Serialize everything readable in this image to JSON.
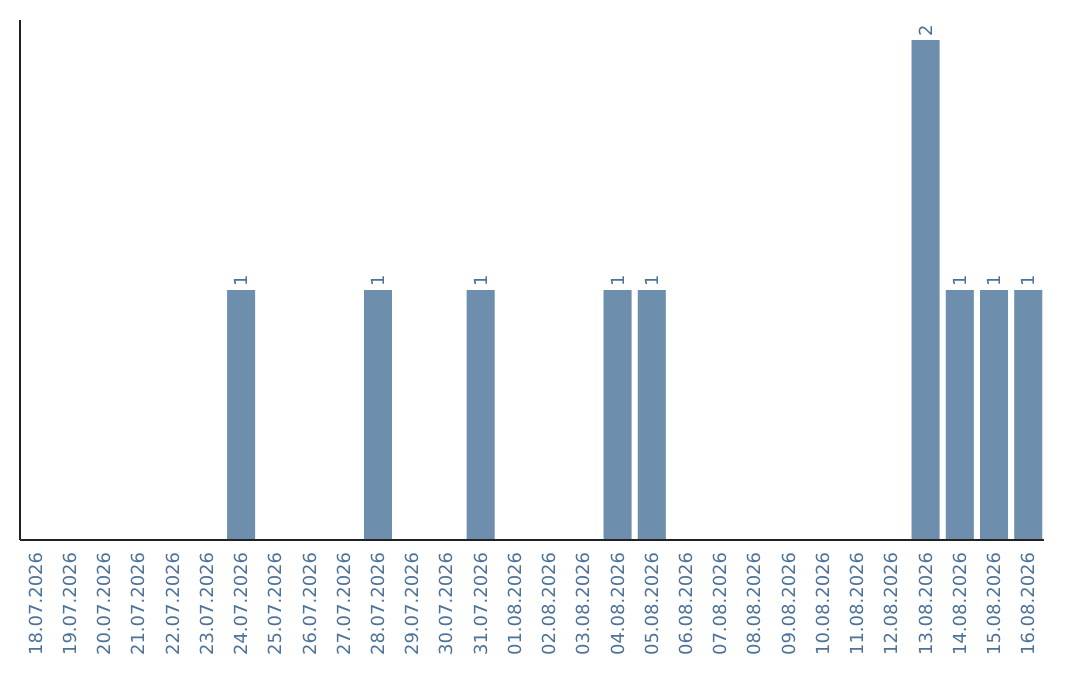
{
  "chart_data": {
    "type": "bar",
    "categories": [
      "18.07.2026",
      "19.07.2026",
      "20.07.2026",
      "21.07.2026",
      "22.07.2026",
      "23.07.2026",
      "24.07.2026",
      "25.07.2026",
      "26.07.2026",
      "27.07.2026",
      "28.07.2026",
      "29.07.2026",
      "30.07.2026",
      "31.07.2026",
      "01.08.2026",
      "02.08.2026",
      "03.08.2026",
      "04.08.2026",
      "05.08.2026",
      "06.08.2026",
      "07.08.2026",
      "08.08.2026",
      "09.08.2026",
      "10.08.2026",
      "11.08.2026",
      "12.08.2026",
      "13.08.2026",
      "14.08.2026",
      "15.08.2026",
      "16.08.2026"
    ],
    "values": [
      0,
      0,
      0,
      0,
      0,
      0,
      1,
      0,
      0,
      0,
      1,
      0,
      0,
      1,
      0,
      0,
      0,
      1,
      1,
      0,
      0,
      0,
      0,
      0,
      0,
      0,
      2,
      1,
      1,
      1
    ],
    "value_labels": [
      null,
      null,
      null,
      null,
      null,
      null,
      "1",
      null,
      null,
      null,
      "1",
      null,
      null,
      "1",
      null,
      null,
      null,
      "1",
      "1",
      null,
      null,
      null,
      null,
      null,
      null,
      null,
      "2",
      "1",
      "1",
      "1"
    ],
    "color": "#6d8fad"
  }
}
